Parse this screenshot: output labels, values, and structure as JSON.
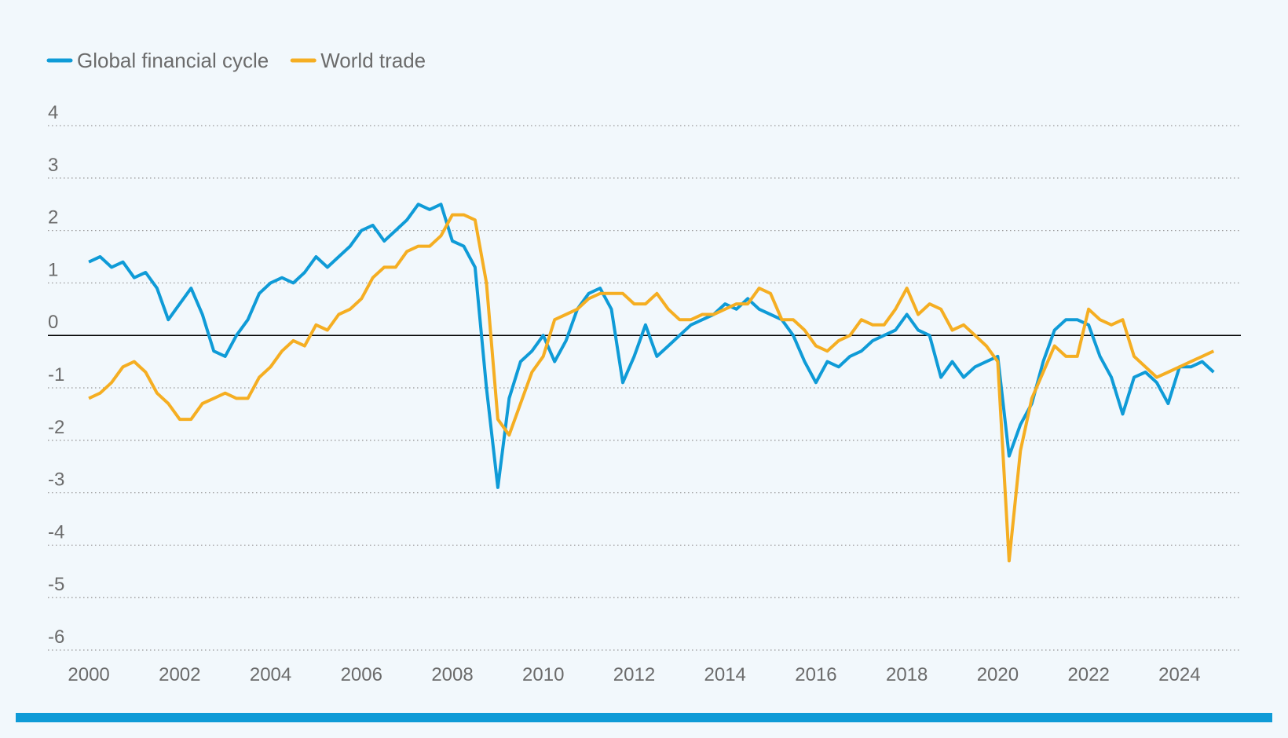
{
  "chart_data": {
    "type": "line",
    "x": [
      2000,
      2000.25,
      2000.5,
      2000.75,
      2001,
      2001.25,
      2001.5,
      2001.75,
      2002,
      2002.25,
      2002.5,
      2002.75,
      2003,
      2003.25,
      2003.5,
      2003.75,
      2004,
      2004.25,
      2004.5,
      2004.75,
      2005,
      2005.25,
      2005.5,
      2005.75,
      2006,
      2006.25,
      2006.5,
      2006.75,
      2007,
      2007.25,
      2007.5,
      2007.75,
      2008,
      2008.25,
      2008.5,
      2008.75,
      2009,
      2009.25,
      2009.5,
      2009.75,
      2010,
      2010.25,
      2010.5,
      2010.75,
      2011,
      2011.25,
      2011.5,
      2011.75,
      2012,
      2012.25,
      2012.5,
      2012.75,
      2013,
      2013.25,
      2013.5,
      2013.75,
      2014,
      2014.25,
      2014.5,
      2014.75,
      2015,
      2015.25,
      2015.5,
      2015.75,
      2016,
      2016.25,
      2016.5,
      2016.75,
      2017,
      2017.25,
      2017.5,
      2017.75,
      2018,
      2018.25,
      2018.5,
      2018.75,
      2019,
      2019.25,
      2019.5,
      2019.75,
      2020,
      2020.25,
      2020.5,
      2020.75,
      2021,
      2021.25,
      2021.5,
      2021.75,
      2022,
      2022.25,
      2022.5,
      2022.75,
      2023,
      2023.25,
      2023.5,
      2023.75,
      2024,
      2024.25,
      2024.5,
      2024.75
    ],
    "series": [
      {
        "name": "Global financial cycle",
        "color": "#0f9bd7",
        "values": [
          1.4,
          1.5,
          1.3,
          1.4,
          1.1,
          1.2,
          0.9,
          0.3,
          0.6,
          0.9,
          0.4,
          -0.3,
          -0.4,
          0.0,
          0.3,
          0.8,
          1.0,
          1.1,
          1.0,
          1.2,
          1.5,
          1.3,
          1.5,
          1.7,
          2.0,
          2.1,
          1.8,
          2.0,
          2.2,
          2.5,
          2.4,
          2.5,
          1.8,
          1.7,
          1.3,
          -1.0,
          -2.9,
          -1.2,
          -0.5,
          -0.3,
          0.0,
          -0.5,
          -0.1,
          0.5,
          0.8,
          0.9,
          0.5,
          -0.9,
          -0.4,
          0.2,
          -0.4,
          -0.2,
          0.0,
          0.2,
          0.3,
          0.4,
          0.6,
          0.5,
          0.7,
          0.5,
          0.4,
          0.3,
          0.0,
          -0.5,
          -0.9,
          -0.5,
          -0.6,
          -0.4,
          -0.3,
          -0.1,
          0.0,
          0.1,
          0.4,
          0.1,
          0.0,
          -0.8,
          -0.5,
          -0.8,
          -0.6,
          -0.5,
          -0.4,
          -2.3,
          -1.7,
          -1.3,
          -0.5,
          0.1,
          0.3,
          0.3,
          0.2,
          -0.4,
          -0.8,
          -1.5,
          -0.8,
          -0.7,
          -0.9,
          -1.3,
          -0.6,
          -0.6,
          -0.5,
          -0.7
        ]
      },
      {
        "name": "World trade",
        "color": "#f5ae22",
        "values": [
          -1.2,
          -1.1,
          -0.9,
          -0.6,
          -0.5,
          -0.7,
          -1.1,
          -1.3,
          -1.6,
          -1.6,
          -1.3,
          -1.2,
          -1.1,
          -1.2,
          -1.2,
          -0.8,
          -0.6,
          -0.3,
          -0.1,
          -0.2,
          0.2,
          0.1,
          0.4,
          0.5,
          0.7,
          1.1,
          1.3,
          1.3,
          1.6,
          1.7,
          1.7,
          1.9,
          2.3,
          2.3,
          2.2,
          1.0,
          -1.6,
          -1.9,
          -1.3,
          -0.7,
          -0.4,
          0.3,
          0.4,
          0.5,
          0.7,
          0.8,
          0.8,
          0.8,
          0.6,
          0.6,
          0.8,
          0.5,
          0.3,
          0.3,
          0.4,
          0.4,
          0.5,
          0.6,
          0.6,
          0.9,
          0.8,
          0.3,
          0.3,
          0.1,
          -0.2,
          -0.3,
          -0.1,
          0.0,
          0.3,
          0.2,
          0.2,
          0.5,
          0.9,
          0.4,
          0.6,
          0.5,
          0.1,
          0.2,
          0.0,
          -0.2,
          -0.5,
          -4.3,
          -2.2,
          -1.2,
          -0.7,
          -0.2,
          -0.4,
          -0.4,
          0.5,
          0.3,
          0.2,
          0.3,
          -0.4,
          -0.6,
          -0.8,
          -0.7,
          -0.6,
          -0.5,
          -0.4,
          -0.3
        ]
      }
    ],
    "xlim": [
      1999.1,
      2025.35
    ],
    "xticks": [
      2000,
      2002,
      2004,
      2006,
      2008,
      2010,
      2012,
      2014,
      2016,
      2018,
      2020,
      2022,
      2024
    ],
    "ylim": [
      -6,
      4
    ],
    "yticks": [
      -6,
      -5,
      -4,
      -3,
      -2,
      -1,
      0,
      1,
      2,
      3,
      4
    ],
    "grid": true
  }
}
